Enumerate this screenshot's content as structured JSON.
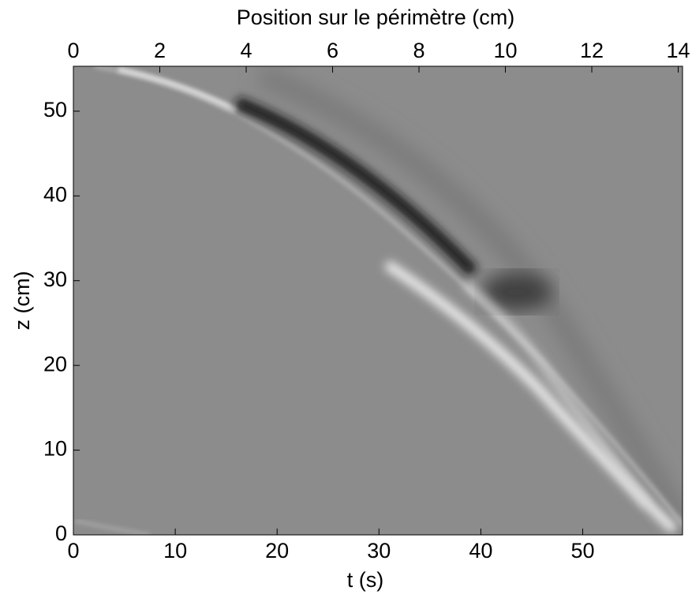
{
  "chart_data": {
    "type": "image",
    "title": "Position sur le périmètre (cm)",
    "x_label": "t (s)",
    "y_label": "z (cm)",
    "xlim": [
      0,
      59.8
    ],
    "xticks": [
      0,
      10,
      20,
      30,
      40,
      50
    ],
    "x2lim": [
      0,
      14.1
    ],
    "x2ticks": [
      0,
      2,
      4,
      6,
      8,
      10,
      12,
      14
    ],
    "ylim": [
      0,
      55.3
    ],
    "yticks": [
      0,
      10,
      20,
      30,
      40,
      50
    ],
    "background": "#8c8c8c"
  }
}
